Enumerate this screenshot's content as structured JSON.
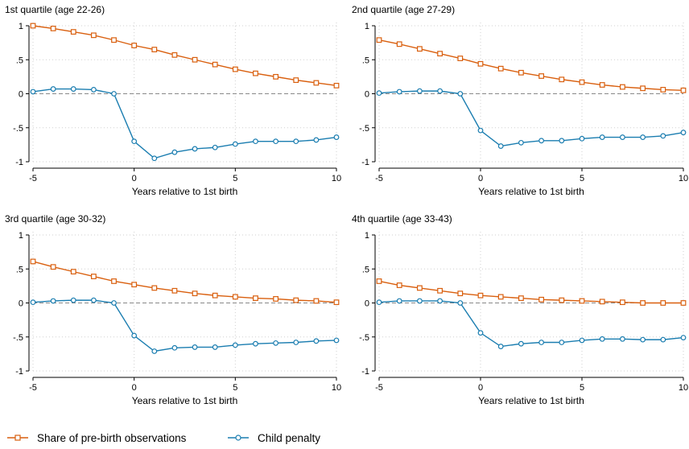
{
  "colors": {
    "pre_birth": "#d95f0e",
    "child_penalty": "#1a7db0",
    "grid": "#cfcfcf",
    "axis": "#000000",
    "zero_line": "#888888"
  },
  "legend": [
    {
      "label": "Share of pre-birth observations",
      "color": "#d95f0e",
      "marker": "square"
    },
    {
      "label": "Child penalty",
      "color": "#1a7db0",
      "marker": "circle"
    }
  ],
  "chart_data": [
    {
      "type": "line",
      "title": "1st quartile (age 22-26)",
      "xlabel": "Years relative to 1st birth",
      "ylabel": "",
      "xlim": [
        -5,
        10
      ],
      "ylim": [
        -1,
        1
      ],
      "xticks": [
        -5,
        0,
        5,
        10
      ],
      "yticks": [
        1,
        0.5,
        0,
        -0.5,
        -1
      ],
      "ytick_labels": [
        "1",
        ".5",
        "0",
        "-.5",
        "-1"
      ],
      "x": [
        -5,
        -4,
        -3,
        -2,
        -1,
        0,
        1,
        2,
        3,
        4,
        5,
        6,
        7,
        8,
        9,
        10
      ],
      "series": [
        {
          "name": "Share of pre-birth observations",
          "values": [
            1.0,
            0.96,
            0.91,
            0.86,
            0.79,
            0.71,
            0.65,
            0.57,
            0.5,
            0.43,
            0.36,
            0.3,
            0.25,
            0.2,
            0.16,
            0.12
          ]
        },
        {
          "name": "Child penalty",
          "values": [
            0.03,
            0.07,
            0.07,
            0.06,
            0.0,
            -0.7,
            -0.95,
            -0.86,
            -0.81,
            -0.79,
            -0.74,
            -0.7,
            -0.7,
            -0.7,
            -0.68,
            -0.64
          ]
        }
      ]
    },
    {
      "type": "line",
      "title": "2nd quartile (age 27-29)",
      "xlabel": "Years relative to 1st birth",
      "ylabel": "",
      "xlim": [
        -5,
        10
      ],
      "ylim": [
        -1,
        1
      ],
      "xticks": [
        -5,
        0,
        5,
        10
      ],
      "yticks": [
        1,
        0.5,
        0,
        -0.5,
        -1
      ],
      "ytick_labels": [
        "1",
        ".5",
        "0",
        "-.5",
        "-1"
      ],
      "x": [
        -5,
        -4,
        -3,
        -2,
        -1,
        0,
        1,
        2,
        3,
        4,
        5,
        6,
        7,
        8,
        9,
        10
      ],
      "series": [
        {
          "name": "Share of pre-birth observations",
          "values": [
            0.79,
            0.73,
            0.66,
            0.59,
            0.52,
            0.44,
            0.37,
            0.31,
            0.26,
            0.21,
            0.17,
            0.13,
            0.1,
            0.08,
            0.06,
            0.05
          ]
        },
        {
          "name": "Child penalty",
          "values": [
            0.01,
            0.03,
            0.04,
            0.04,
            0.0,
            -0.54,
            -0.77,
            -0.72,
            -0.69,
            -0.69,
            -0.66,
            -0.64,
            -0.64,
            -0.64,
            -0.62,
            -0.57
          ]
        }
      ]
    },
    {
      "type": "line",
      "title": "3rd quartile (age 30-32)",
      "xlabel": "Years relative to 1st birth",
      "ylabel": "",
      "xlim": [
        -5,
        10
      ],
      "ylim": [
        -1,
        1
      ],
      "xticks": [
        -5,
        0,
        5,
        10
      ],
      "yticks": [
        1,
        0.5,
        0,
        -0.5,
        -1
      ],
      "ytick_labels": [
        "1",
        ".5",
        "0",
        "-.5",
        "-1"
      ],
      "x": [
        -5,
        -4,
        -3,
        -2,
        -1,
        0,
        1,
        2,
        3,
        4,
        5,
        6,
        7,
        8,
        9,
        10
      ],
      "series": [
        {
          "name": "Share of pre-birth observations",
          "values": [
            0.61,
            0.53,
            0.46,
            0.39,
            0.32,
            0.27,
            0.22,
            0.18,
            0.14,
            0.11,
            0.09,
            0.07,
            0.06,
            0.04,
            0.03,
            0.01
          ]
        },
        {
          "name": "Child penalty",
          "values": [
            0.01,
            0.03,
            0.04,
            0.04,
            0.0,
            -0.48,
            -0.71,
            -0.66,
            -0.65,
            -0.65,
            -0.62,
            -0.6,
            -0.59,
            -0.58,
            -0.56,
            -0.55
          ]
        }
      ]
    },
    {
      "type": "line",
      "title": "4th quartile (age 33-43)",
      "xlabel": "Years relative to 1st birth",
      "ylabel": "",
      "xlim": [
        -5,
        10
      ],
      "ylim": [
        -1,
        1
      ],
      "xticks": [
        -5,
        0,
        5,
        10
      ],
      "yticks": [
        1,
        0.5,
        0,
        -0.5,
        -1
      ],
      "ytick_labels": [
        "1",
        ".5",
        "0",
        "-.5",
        "-1"
      ],
      "x": [
        -5,
        -4,
        -3,
        -2,
        -1,
        0,
        1,
        2,
        3,
        4,
        5,
        6,
        7,
        8,
        9,
        10
      ],
      "series": [
        {
          "name": "Share of pre-birth observations",
          "values": [
            0.32,
            0.26,
            0.22,
            0.18,
            0.14,
            0.11,
            0.09,
            0.07,
            0.05,
            0.04,
            0.03,
            0.02,
            0.01,
            0.0,
            0.0,
            0.0
          ]
        },
        {
          "name": "Child penalty",
          "values": [
            0.01,
            0.03,
            0.03,
            0.03,
            0.0,
            -0.44,
            -0.64,
            -0.6,
            -0.58,
            -0.58,
            -0.55,
            -0.53,
            -0.53,
            -0.54,
            -0.54,
            -0.51
          ]
        }
      ]
    }
  ]
}
